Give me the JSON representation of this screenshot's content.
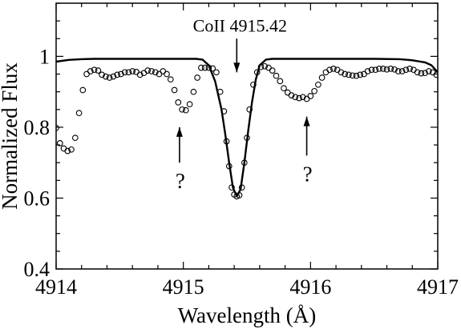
{
  "chart_data": {
    "type": "line",
    "xlabel": "Wavelength (Å)",
    "ylabel": "Normalized Flux",
    "xlim": [
      4914,
      4917
    ],
    "ylim": [
      0.4,
      1.15
    ],
    "x_ticks": [
      4914,
      4915,
      4916,
      4917
    ],
    "x_tick_labels": [
      "4914",
      "4915",
      "4916",
      "4917"
    ],
    "y_ticks": [
      0.4,
      0.6,
      0.8,
      1.0
    ],
    "y_tick_labels": [
      "0.4",
      "0.6",
      "0.8",
      "1"
    ],
    "grid": false,
    "legend": "none",
    "series": [
      {
        "style": "solid-line",
        "color": "#000000",
        "points": [
          [
            4914.0,
            0.985
          ],
          [
            4914.1,
            0.99
          ],
          [
            4914.2,
            0.992
          ],
          [
            4914.3,
            0.993
          ],
          [
            4914.4,
            0.993
          ],
          [
            4914.6,
            0.993
          ],
          [
            4914.8,
            0.993
          ],
          [
            4915.0,
            0.993
          ],
          [
            4915.1,
            0.993
          ],
          [
            4915.15,
            0.991
          ],
          [
            4915.2,
            0.975
          ],
          [
            4915.25,
            0.93
          ],
          [
            4915.3,
            0.85
          ],
          [
            4915.33,
            0.78
          ],
          [
            4915.36,
            0.7
          ],
          [
            4915.39,
            0.63
          ],
          [
            4915.42,
            0.605
          ],
          [
            4915.45,
            0.625
          ],
          [
            4915.48,
            0.7
          ],
          [
            4915.51,
            0.79
          ],
          [
            4915.54,
            0.87
          ],
          [
            4915.57,
            0.935
          ],
          [
            4915.6,
            0.975
          ],
          [
            4915.65,
            0.991
          ],
          [
            4915.7,
            0.993
          ],
          [
            4915.9,
            0.993
          ],
          [
            4916.2,
            0.993
          ],
          [
            4916.5,
            0.993
          ],
          [
            4916.7,
            0.992
          ],
          [
            4916.8,
            0.989
          ],
          [
            4916.9,
            0.983
          ],
          [
            4916.95,
            0.975
          ],
          [
            4917.0,
            0.955
          ]
        ]
      },
      {
        "style": "open-circles",
        "color": "#000000",
        "points": [
          [
            4914.0,
            0.798
          ],
          [
            4914.03,
            0.755
          ],
          [
            4914.06,
            0.74
          ],
          [
            4914.09,
            0.733
          ],
          [
            4914.12,
            0.737
          ],
          [
            4914.15,
            0.77
          ],
          [
            4914.18,
            0.84
          ],
          [
            4914.21,
            0.905
          ],
          [
            4914.24,
            0.95
          ],
          [
            4914.27,
            0.958
          ],
          [
            4914.3,
            0.962
          ],
          [
            4914.33,
            0.96
          ],
          [
            4914.36,
            0.948
          ],
          [
            4914.39,
            0.943
          ],
          [
            4914.42,
            0.94
          ],
          [
            4914.45,
            0.943
          ],
          [
            4914.48,
            0.948
          ],
          [
            4914.51,
            0.95
          ],
          [
            4914.54,
            0.955
          ],
          [
            4914.57,
            0.955
          ],
          [
            4914.6,
            0.958
          ],
          [
            4914.63,
            0.956
          ],
          [
            4914.66,
            0.948
          ],
          [
            4914.69,
            0.953
          ],
          [
            4914.72,
            0.96
          ],
          [
            4914.75,
            0.958
          ],
          [
            4914.78,
            0.955
          ],
          [
            4914.81,
            0.95
          ],
          [
            4914.84,
            0.958
          ],
          [
            4914.87,
            0.95
          ],
          [
            4914.9,
            0.935
          ],
          [
            4914.93,
            0.905
          ],
          [
            4914.96,
            0.87
          ],
          [
            4914.99,
            0.85
          ],
          [
            4915.02,
            0.848
          ],
          [
            4915.05,
            0.865
          ],
          [
            4915.08,
            0.9
          ],
          [
            4915.11,
            0.94
          ],
          [
            4915.14,
            0.968
          ],
          [
            4915.17,
            0.968
          ],
          [
            4915.2,
            0.968
          ],
          [
            4915.23,
            0.966
          ],
          [
            4915.26,
            0.955
          ],
          [
            4915.29,
            0.9
          ],
          [
            4915.32,
            0.845
          ],
          [
            4915.34,
            0.76
          ],
          [
            4915.36,
            0.69
          ],
          [
            4915.38,
            0.63
          ],
          [
            4915.4,
            0.61
          ],
          [
            4915.42,
            0.605
          ],
          [
            4915.44,
            0.608
          ],
          [
            4915.46,
            0.63
          ],
          [
            4915.48,
            0.7
          ],
          [
            4915.5,
            0.77
          ],
          [
            4915.52,
            0.85
          ],
          [
            4915.55,
            0.92
          ],
          [
            4915.58,
            0.955
          ],
          [
            4915.61,
            0.97
          ],
          [
            4915.64,
            0.972
          ],
          [
            4915.67,
            0.968
          ],
          [
            4915.7,
            0.96
          ],
          [
            4915.73,
            0.945
          ],
          [
            4915.76,
            0.93
          ],
          [
            4915.79,
            0.91
          ],
          [
            4915.82,
            0.898
          ],
          [
            4915.85,
            0.89
          ],
          [
            4915.88,
            0.885
          ],
          [
            4915.91,
            0.882
          ],
          [
            4915.94,
            0.885
          ],
          [
            4915.97,
            0.88
          ],
          [
            4916.0,
            0.888
          ],
          [
            4916.03,
            0.902
          ],
          [
            4916.06,
            0.92
          ],
          [
            4916.09,
            0.94
          ],
          [
            4916.12,
            0.955
          ],
          [
            4916.15,
            0.962
          ],
          [
            4916.18,
            0.965
          ],
          [
            4916.21,
            0.962
          ],
          [
            4916.24,
            0.955
          ],
          [
            4916.27,
            0.95
          ],
          [
            4916.3,
            0.948
          ],
          [
            4916.33,
            0.946
          ],
          [
            4916.36,
            0.945
          ],
          [
            4916.39,
            0.948
          ],
          [
            4916.42,
            0.95
          ],
          [
            4916.45,
            0.958
          ],
          [
            4916.48,
            0.962
          ],
          [
            4916.51,
            0.962
          ],
          [
            4916.54,
            0.965
          ],
          [
            4916.57,
            0.965
          ],
          [
            4916.6,
            0.963
          ],
          [
            4916.63,
            0.965
          ],
          [
            4916.66,
            0.963
          ],
          [
            4916.69,
            0.958
          ],
          [
            4916.72,
            0.958
          ],
          [
            4916.75,
            0.962
          ],
          [
            4916.78,
            0.965
          ],
          [
            4916.81,
            0.962
          ],
          [
            4916.84,
            0.955
          ],
          [
            4916.87,
            0.952
          ],
          [
            4916.9,
            0.953
          ],
          [
            4916.93,
            0.958
          ],
          [
            4916.96,
            0.955
          ],
          [
            4916.99,
            0.948
          ]
        ]
      }
    ],
    "annotations": [
      {
        "text": "CoII 4915.42",
        "arrow_x": 4915.42,
        "arrow_from_y": 1.05,
        "arrow_to_y": 0.955,
        "direction": "down"
      },
      {
        "text": "?",
        "arrow_x": 4914.97,
        "arrow_from_y": 0.7,
        "arrow_to_y": 0.8,
        "direction": "up"
      },
      {
        "text": "?",
        "arrow_x": 4915.97,
        "arrow_from_y": 0.72,
        "arrow_to_y": 0.83,
        "direction": "up"
      }
    ]
  }
}
